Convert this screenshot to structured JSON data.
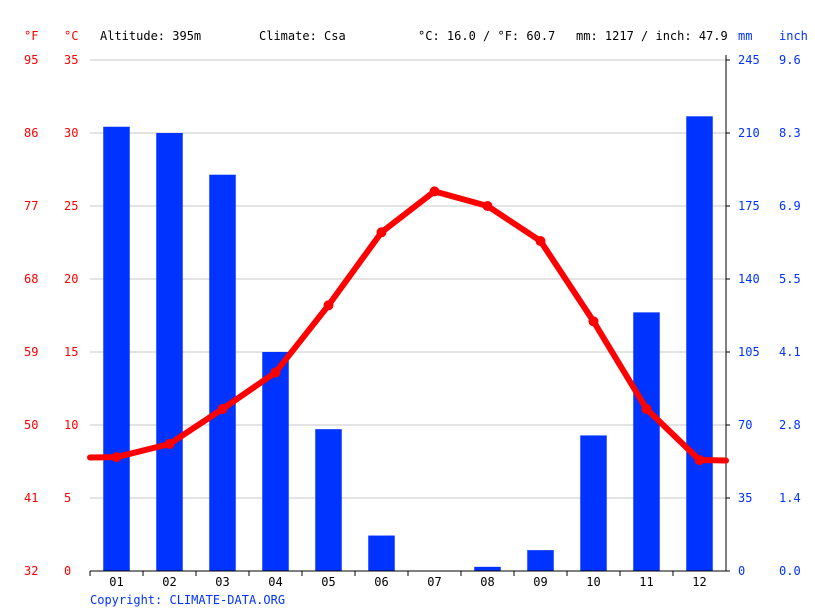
{
  "header": {
    "fahrenheit_unit": "°F",
    "celsius_unit": "°C",
    "altitude": "Altitude: 395m",
    "climate": "Climate: Csa",
    "avg_temp": "°C: 16.0 / °F: 60.7",
    "precip_total": "mm: 1217 / inch: 47.9",
    "mm_unit": "mm",
    "inch_unit": "inch"
  },
  "copyright": "Copyright: CLIMATE-DATA.ORG",
  "colors": {
    "temperature": "#ff0000",
    "precipitation": "#0033ff"
  },
  "chart_data": {
    "type": "bar",
    "categories": [
      "01",
      "02",
      "03",
      "04",
      "05",
      "06",
      "07",
      "08",
      "09",
      "10",
      "11",
      "12"
    ],
    "series": [
      {
        "type": "bar",
        "axis": "right",
        "unit": "mm",
        "values": [
          213,
          210,
          190,
          105,
          68,
          17,
          0,
          2,
          10,
          65,
          124,
          218
        ]
      },
      {
        "type": "line",
        "axis": "left",
        "unit": "°C",
        "values": [
          7.8,
          8.7,
          11.1,
          13.6,
          18.2,
          23.2,
          26.0,
          25.0,
          22.6,
          17.1,
          11.1,
          7.6
        ]
      }
    ],
    "y_left": {
      "celsius_ticks": [
        "0",
        "5",
        "10",
        "15",
        "20",
        "25",
        "30",
        "35"
      ],
      "fahrenheit_ticks": [
        "32",
        "41",
        "50",
        "59",
        "68",
        "77",
        "86",
        "95"
      ],
      "range": [
        0,
        35
      ]
    },
    "y_right": {
      "mm_ticks": [
        "0",
        "35",
        "70",
        "105",
        "140",
        "175",
        "210",
        "245"
      ],
      "inch_ticks": [
        "0.0",
        "1.4",
        "2.8",
        "4.1",
        "5.5",
        "6.9",
        "8.3",
        "9.6"
      ],
      "range": [
        0,
        245
      ]
    },
    "grid": true
  }
}
